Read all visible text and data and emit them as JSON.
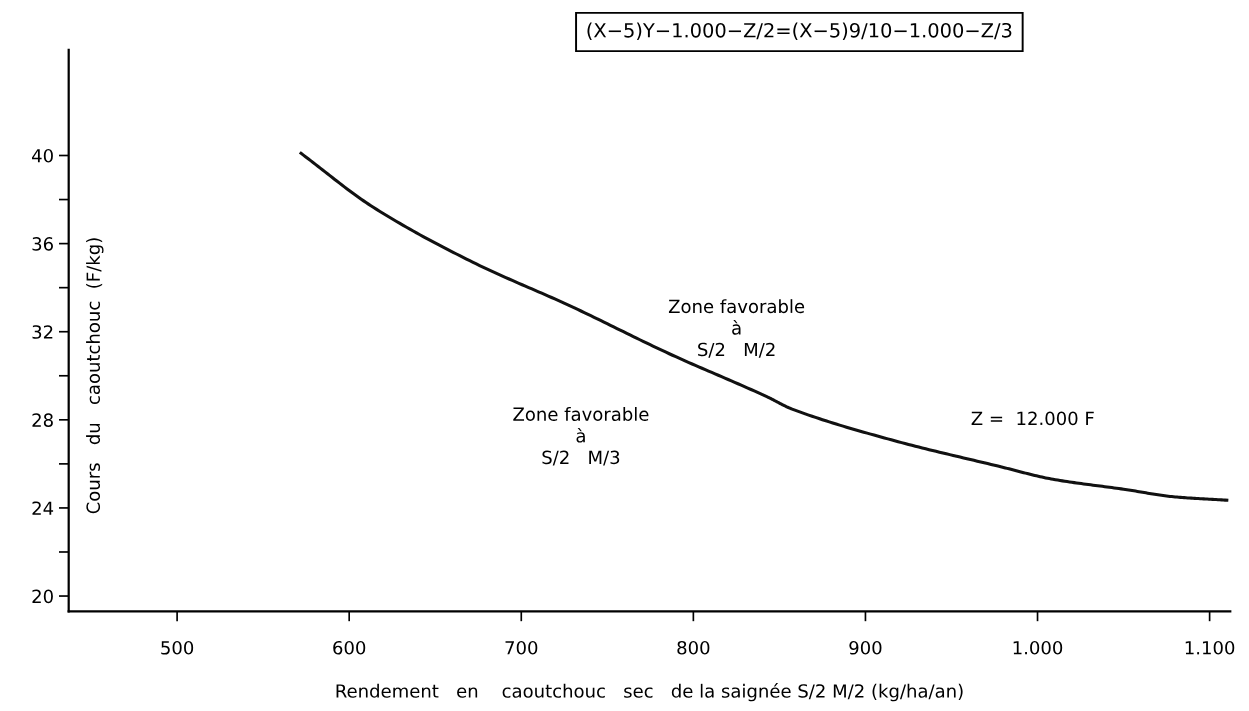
{
  "chart_data": {
    "type": "line",
    "xlabel": "Rendement   en    caoutchouc   sec   de la saignée S/2 M/2 (kg/ha/an)",
    "ylabel": "Cours   du   caoutchouc  (F/kg)",
    "x": [
      572,
      614,
      672,
      729,
      786,
      843,
      857,
      917,
      977,
      1009,
      1050,
      1080,
      1110
    ],
    "series": [
      {
        "color": "#111111",
        "values": [
          40.1,
          37.65,
          35.15,
          33.15,
          31.0,
          29.04,
          28.5,
          27.05,
          25.9,
          25.3,
          24.85,
          24.5,
          24.35
        ]
      }
    ],
    "xlim": [
      437,
      1112
    ],
    "xticks": [
      500,
      600,
      700,
      800,
      900,
      {
        "value": 1000,
        "label": "1.000"
      },
      {
        "value": 1100,
        "label": "1.100"
      }
    ],
    "ylim": [
      19.3,
      44.8
    ],
    "yticks": [
      20,
      {
        "value": 22,
        "label": null
      },
      24,
      {
        "value": 26,
        "label": null
      },
      28,
      {
        "value": 30,
        "label": null
      },
      32,
      {
        "value": 34,
        "label": null
      },
      36,
      {
        "value": 38,
        "label": null
      },
      40
    ],
    "annotations": [
      "(X−5)Y−1.000−Z/2=(X−5)9/10−1.000−Z/3",
      "Zone favorable\nà\nS/2   M/2",
      "Zone favorable\nà\nS/2   M/3",
      "Z =  12.000 F"
    ],
    "grid": false,
    "legend": false,
    "marker": "none",
    "line_style": "solid"
  }
}
